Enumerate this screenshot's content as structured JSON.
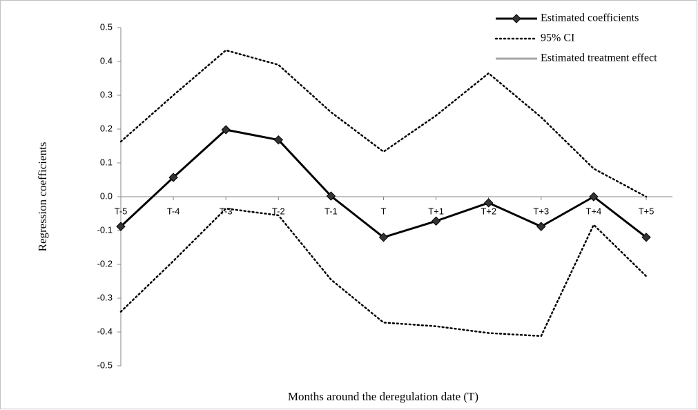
{
  "chart_data": {
    "type": "line",
    "y_axis_label": "Regression coefficients",
    "x_axis_label": "Months around the deregulation date (T)",
    "categories": [
      "T-5",
      "T-4",
      "T-3",
      "T-2",
      "T-1",
      "T",
      "T+1",
      "T+2",
      "T+3",
      "T+4",
      "T+5"
    ],
    "series": [
      {
        "name": "Estimated coefficients",
        "color": "#000000",
        "style": "solid-diamond",
        "values": [
          -0.088,
          0.057,
          0.198,
          0.168,
          0.002,
          -0.12,
          -0.072,
          -0.018,
          -0.088,
          0.0,
          -0.12
        ]
      },
      {
        "name": "95% CI",
        "color": "#000000",
        "style": "dotted",
        "values": [
          0.163,
          0.3,
          0.433,
          0.39,
          0.25,
          0.133,
          0.24,
          0.365,
          0.235,
          0.083,
          0.0
        ],
        "lower": [
          -0.34,
          -0.19,
          -0.035,
          -0.055,
          -0.245,
          -0.372,
          -0.383,
          -0.403,
          -0.412,
          -0.083,
          -0.235
        ]
      },
      {
        "name": "Estimated treatment effect",
        "color": "#a6a6a6",
        "style": "solid"
      }
    ],
    "ylim": [
      -0.5,
      0.5
    ],
    "yticks": [
      -0.5,
      -0.4,
      -0.3,
      -0.2,
      -0.1,
      {
        "value": 0,
        "label": "0.0"
      },
      0.1,
      0.2,
      0.3,
      0.4,
      0.5
    ],
    "legend": "top-right"
  }
}
